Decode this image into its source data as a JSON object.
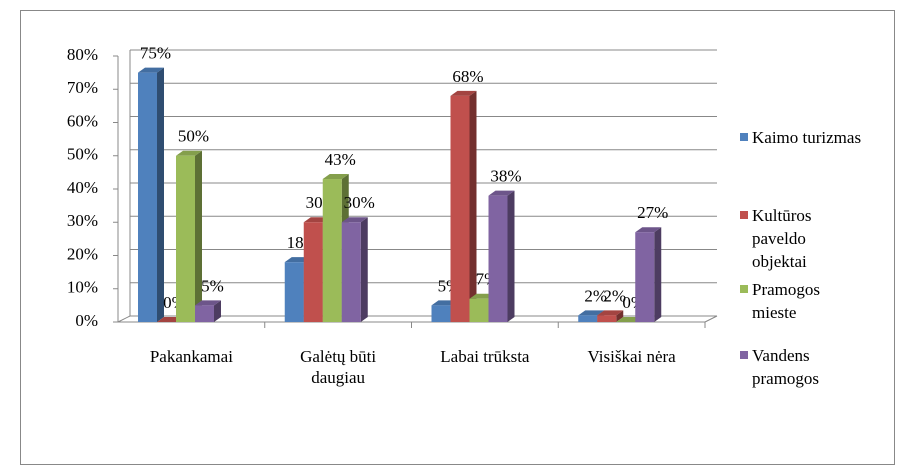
{
  "chart_data": {
    "type": "bar3d",
    "categories": [
      "Pakankamai",
      "Galėtų būti daugiau",
      "Labai trūksta",
      "Visiškai nėra"
    ],
    "series": [
      {
        "name": "Kaimo turizmas",
        "color": "#4f81bd",
        "values": [
          75,
          18,
          5,
          2
        ],
        "value_labels": [
          "75%",
          "18%",
          "5%",
          "2%"
        ]
      },
      {
        "name": "Kultūros paveldo objektai",
        "color": "#c0504d",
        "values": [
          0,
          30,
          68,
          2
        ],
        "value_labels": [
          "0%",
          "30%",
          "68%",
          "2%"
        ]
      },
      {
        "name": "Pramogos mieste",
        "color": "#9bbb59",
        "values": [
          50,
          43,
          7,
          0
        ],
        "value_labels": [
          "50%",
          "43%",
          "7%",
          "0%"
        ]
      },
      {
        "name": "Vandens pramogos",
        "color": "#8064a2",
        "values": [
          5,
          30,
          38,
          27
        ],
        "value_labels": [
          "5%",
          "30%",
          "38%",
          "27%"
        ]
      }
    ],
    "ylim": [
      0,
      80
    ],
    "yticks": [
      {
        "value": 0,
        "label": "0%"
      },
      {
        "value": 10,
        "label": "10%"
      },
      {
        "value": 20,
        "label": "20%"
      },
      {
        "value": 30,
        "label": "30%"
      },
      {
        "value": 40,
        "label": "40%"
      },
      {
        "value": 50,
        "label": "50%"
      },
      {
        "value": 60,
        "label": "60%"
      },
      {
        "value": 70,
        "label": "70%"
      },
      {
        "value": 80,
        "label": "80%"
      }
    ],
    "grid": true,
    "legend": "right"
  }
}
